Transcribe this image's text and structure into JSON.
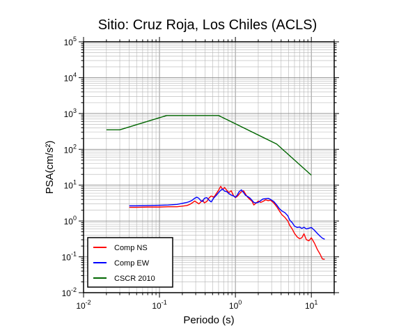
{
  "chart_data": {
    "type": "line",
    "title": "Sitio: Cruz Roja, Los Chiles (ACLS)",
    "xlabel": "Periodo (s)",
    "ylabel": "PSA(cm/s²)",
    "xscale": "log",
    "yscale": "log",
    "xlim": [
      0.01,
      20
    ],
    "ylim": [
      0.01,
      100000
    ],
    "grid": true,
    "legend_position": "bottom-left",
    "x_ticks": [
      {
        "base": "10",
        "exp": "-2",
        "value": 0.01
      },
      {
        "base": "10",
        "exp": "-1",
        "value": 0.1
      },
      {
        "base": "10",
        "exp": "0",
        "value": 1
      },
      {
        "base": "10",
        "exp": "1",
        "value": 10
      }
    ],
    "y_ticks": [
      {
        "base": "10",
        "exp": "-2",
        "value": 0.01
      },
      {
        "base": "10",
        "exp": "-1",
        "value": 0.1
      },
      {
        "base": "10",
        "exp": "0",
        "value": 1
      },
      {
        "base": "10",
        "exp": "1",
        "value": 10
      },
      {
        "base": "10",
        "exp": "2",
        "value": 100
      },
      {
        "base": "10",
        "exp": "3",
        "value": 1000
      },
      {
        "base": "10",
        "exp": "4",
        "value": 10000
      },
      {
        "base": "10",
        "exp": "5",
        "value": 100000
      }
    ],
    "series": [
      {
        "name": "Comp NS",
        "color": "#ff0000",
        "points": [
          [
            0.04,
            2.4
          ],
          [
            0.05,
            2.4
          ],
          [
            0.07,
            2.45
          ],
          [
            0.1,
            2.45
          ],
          [
            0.13,
            2.5
          ],
          [
            0.17,
            2.5
          ],
          [
            0.2,
            2.6
          ],
          [
            0.23,
            2.7
          ],
          [
            0.25,
            2.9
          ],
          [
            0.27,
            3.2
          ],
          [
            0.29,
            3.6
          ],
          [
            0.31,
            3.3
          ],
          [
            0.33,
            3.0
          ],
          [
            0.35,
            3.4
          ],
          [
            0.37,
            3.8
          ],
          [
            0.39,
            3.2
          ],
          [
            0.42,
            3.5
          ],
          [
            0.45,
            4.4
          ],
          [
            0.48,
            5.0
          ],
          [
            0.52,
            4.6
          ],
          [
            0.56,
            5.8
          ],
          [
            0.6,
            7.2
          ],
          [
            0.64,
            9.3
          ],
          [
            0.68,
            7.6
          ],
          [
            0.72,
            8.6
          ],
          [
            0.77,
            7.2
          ],
          [
            0.82,
            6.2
          ],
          [
            0.88,
            7.0
          ],
          [
            0.94,
            5.2
          ],
          [
            1.0,
            4.5
          ],
          [
            1.06,
            4.9
          ],
          [
            1.12,
            5.6
          ],
          [
            1.2,
            6.6
          ],
          [
            1.28,
            7.0
          ],
          [
            1.36,
            5.6
          ],
          [
            1.45,
            4.6
          ],
          [
            1.55,
            4.0
          ],
          [
            1.65,
            3.6
          ],
          [
            1.75,
            2.8
          ],
          [
            1.85,
            3.1
          ],
          [
            2.0,
            3.6
          ],
          [
            2.15,
            3.3
          ],
          [
            2.3,
            3.5
          ],
          [
            2.5,
            3.9
          ],
          [
            2.7,
            3.7
          ],
          [
            2.9,
            3.8
          ],
          [
            3.2,
            3.2
          ],
          [
            3.5,
            2.5
          ],
          [
            3.8,
            1.9
          ],
          [
            4.1,
            1.5
          ],
          [
            4.5,
            1.25
          ],
          [
            4.9,
            1.0
          ],
          [
            5.2,
            0.75
          ],
          [
            5.6,
            0.6
          ],
          [
            6.0,
            0.45
          ],
          [
            6.5,
            0.36
          ],
          [
            7.0,
            0.32
          ],
          [
            7.5,
            0.34
          ],
          [
            8.0,
            0.44
          ],
          [
            8.6,
            0.3
          ],
          [
            9.3,
            0.28
          ],
          [
            10.0,
            0.34
          ],
          [
            11.0,
            0.24
          ],
          [
            12.0,
            0.16
          ],
          [
            13.0,
            0.12
          ],
          [
            14.0,
            0.087
          ],
          [
            15.0,
            0.085
          ]
        ]
      },
      {
        "name": "Comp EW",
        "color": "#0000ff",
        "points": [
          [
            0.04,
            2.65
          ],
          [
            0.05,
            2.65
          ],
          [
            0.07,
            2.7
          ],
          [
            0.1,
            2.75
          ],
          [
            0.13,
            2.8
          ],
          [
            0.17,
            2.9
          ],
          [
            0.2,
            3.1
          ],
          [
            0.23,
            3.3
          ],
          [
            0.25,
            3.5
          ],
          [
            0.27,
            3.8
          ],
          [
            0.29,
            4.3
          ],
          [
            0.31,
            4.6
          ],
          [
            0.33,
            4.3
          ],
          [
            0.35,
            3.7
          ],
          [
            0.37,
            3.5
          ],
          [
            0.39,
            4.3
          ],
          [
            0.42,
            4.5
          ],
          [
            0.45,
            3.8
          ],
          [
            0.48,
            3.4
          ],
          [
            0.52,
            4.4
          ],
          [
            0.56,
            5.2
          ],
          [
            0.6,
            6.2
          ],
          [
            0.64,
            7.2
          ],
          [
            0.68,
            7.8
          ],
          [
            0.72,
            6.8
          ],
          [
            0.77,
            6.6
          ],
          [
            0.82,
            5.8
          ],
          [
            0.88,
            5.3
          ],
          [
            0.94,
            5.0
          ],
          [
            1.0,
            4.6
          ],
          [
            1.06,
            5.3
          ],
          [
            1.12,
            6.6
          ],
          [
            1.2,
            7.4
          ],
          [
            1.28,
            6.2
          ],
          [
            1.36,
            5.2
          ],
          [
            1.45,
            4.8
          ],
          [
            1.55,
            4.4
          ],
          [
            1.65,
            3.8
          ],
          [
            1.75,
            3.3
          ],
          [
            1.85,
            3.2
          ],
          [
            2.0,
            3.3
          ],
          [
            2.15,
            3.7
          ],
          [
            2.3,
            4.1
          ],
          [
            2.5,
            4.2
          ],
          [
            2.7,
            4.3
          ],
          [
            2.9,
            4.0
          ],
          [
            3.2,
            3.5
          ],
          [
            3.5,
            2.8
          ],
          [
            3.8,
            2.2
          ],
          [
            4.1,
            1.9
          ],
          [
            4.5,
            1.7
          ],
          [
            4.9,
            1.4
          ],
          [
            5.2,
            1.05
          ],
          [
            5.6,
            0.9
          ],
          [
            6.0,
            0.72
          ],
          [
            6.5,
            0.66
          ],
          [
            7.0,
            0.68
          ],
          [
            7.5,
            0.62
          ],
          [
            8.0,
            0.67
          ],
          [
            8.6,
            0.6
          ],
          [
            9.3,
            0.63
          ],
          [
            10.0,
            0.66
          ],
          [
            11.0,
            0.55
          ],
          [
            12.0,
            0.45
          ],
          [
            13.0,
            0.38
          ],
          [
            14.0,
            0.33
          ],
          [
            15.0,
            0.31
          ]
        ]
      },
      {
        "name": "CSCR 2010",
        "color": "#006600",
        "points": [
          [
            0.02,
            350
          ],
          [
            0.03,
            350
          ],
          [
            0.125,
            880
          ],
          [
            0.6,
            880
          ],
          [
            3.5,
            140
          ],
          [
            10.0,
            19
          ]
        ]
      }
    ]
  }
}
